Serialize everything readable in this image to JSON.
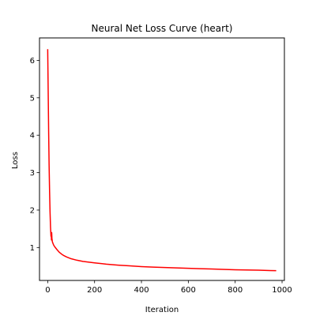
{
  "chart_data": {
    "type": "line",
    "title": "Neural Net Loss Curve (heart)",
    "xlabel": "Iteration",
    "ylabel": "Loss",
    "xlim": [
      -35,
      1010
    ],
    "ylim": [
      0.12,
      6.6
    ],
    "xticks": [
      0,
      200,
      400,
      600,
      800,
      1000
    ],
    "yticks": [
      1,
      2,
      3,
      4,
      5,
      6
    ],
    "grid": false,
    "legend": "none",
    "series": [
      {
        "color": "#ff0000",
        "x": [
          0,
          2,
          4,
          6,
          8,
          10,
          12,
          14,
          15,
          16,
          17,
          18,
          20,
          25,
          30,
          40,
          50,
          60,
          70,
          80,
          100,
          125,
          150,
          200,
          250,
          300,
          350,
          400,
          450,
          500,
          550,
          600,
          650,
          700,
          750,
          800,
          850,
          900,
          950,
          975
        ],
        "y": [
          6.3,
          5.2,
          4.1,
          3.2,
          2.5,
          1.95,
          1.55,
          1.3,
          1.38,
          1.2,
          1.4,
          1.25,
          1.15,
          1.07,
          1.02,
          0.94,
          0.87,
          0.82,
          0.78,
          0.75,
          0.7,
          0.66,
          0.63,
          0.59,
          0.555,
          0.53,
          0.51,
          0.49,
          0.475,
          0.465,
          0.455,
          0.445,
          0.435,
          0.425,
          0.415,
          0.405,
          0.4,
          0.395,
          0.385,
          0.38
        ]
      }
    ]
  }
}
